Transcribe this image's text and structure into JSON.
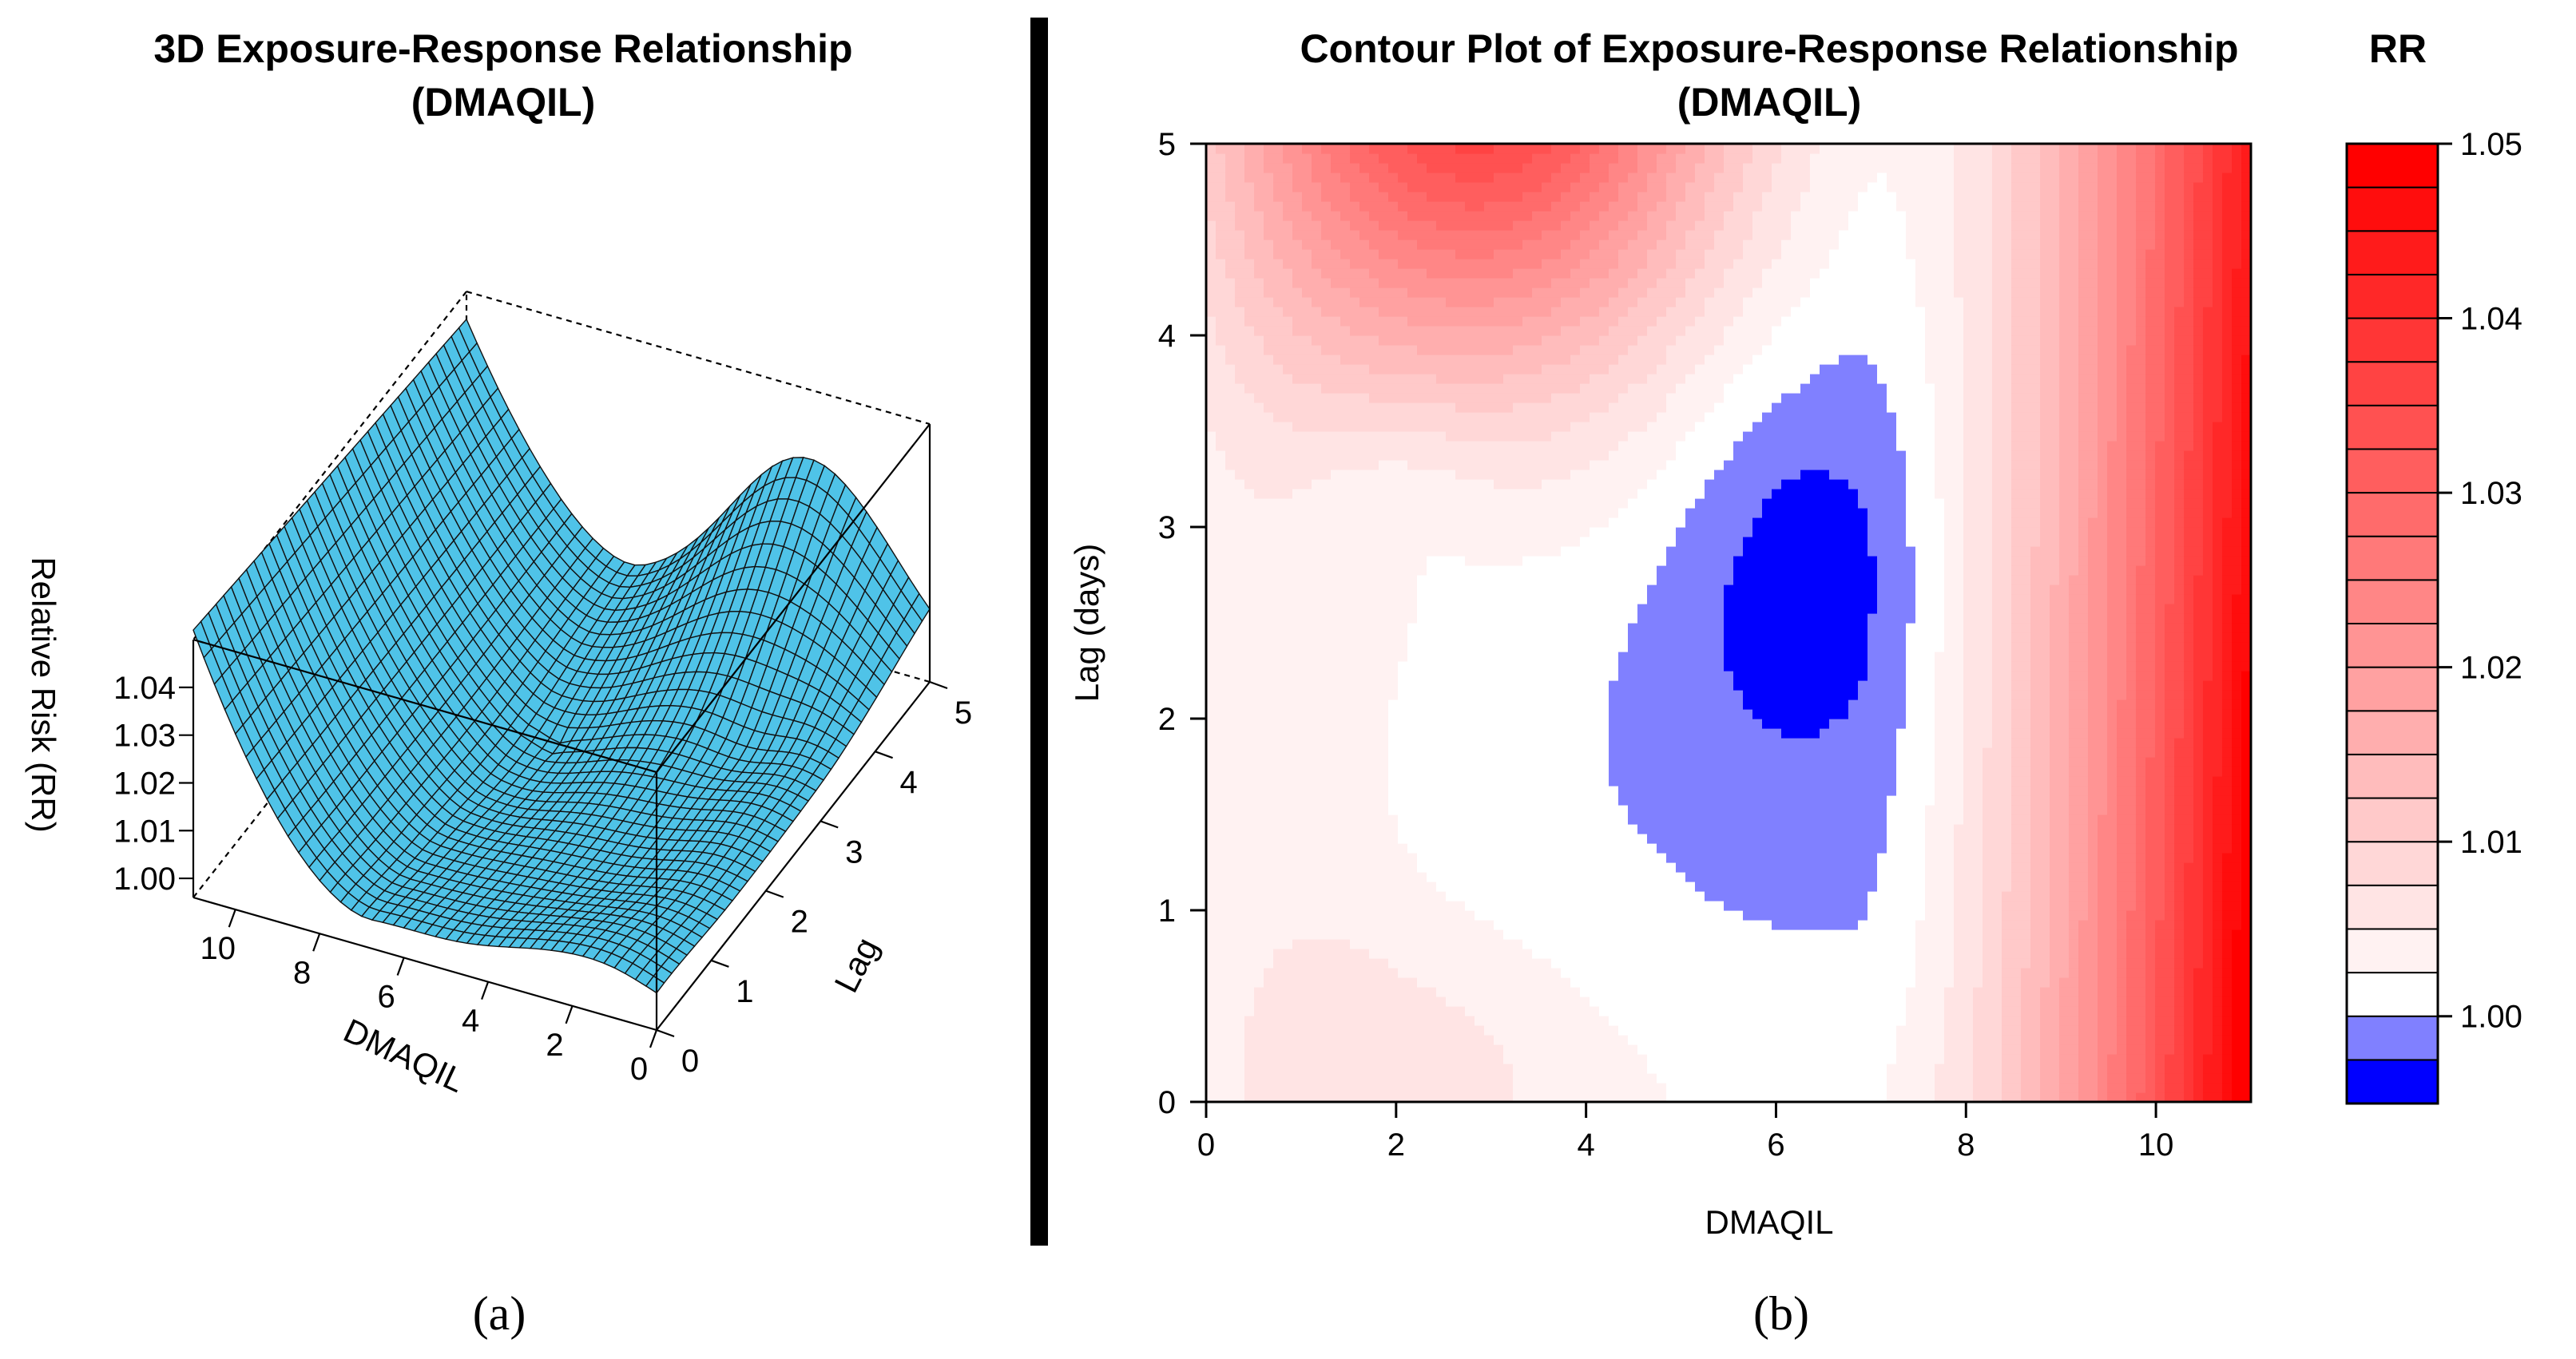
{
  "chart_data": [
    {
      "type": "surface3d",
      "title_line1": "3D Exposure-Response Relationship",
      "title_line2": "(DMAQIL)",
      "xlabel": "DMAQIL",
      "ylabel": "Lag",
      "zlabel": "Relative Risk (RR)",
      "x_ticks": [
        "0",
        "2",
        "4",
        "6",
        "8",
        "10"
      ],
      "y_ticks": [
        "0",
        "1",
        "2",
        "3",
        "4",
        "5"
      ],
      "z_ticks": [
        "1.00",
        "1.01",
        "1.02",
        "1.03",
        "1.04"
      ],
      "xlim": [
        0,
        11
      ],
      "ylim": [
        0,
        5
      ],
      "zlim": [
        0.996,
        1.05
      ],
      "panel_label": "(a)",
      "surface_color": "#4fc3e8"
    },
    {
      "type": "contour",
      "title_line1": "Contour Plot of Exposure-Response Relationship",
      "title_line2": "(DMAQIL)",
      "xlabel": "DMAQIL",
      "ylabel": "Lag (days)",
      "x_ticks": [
        "0",
        "2",
        "4",
        "6",
        "8",
        "10"
      ],
      "y_ticks": [
        "0",
        "1",
        "2",
        "3",
        "4",
        "5"
      ],
      "xlim": [
        0,
        11
      ],
      "ylim": [
        0,
        5
      ],
      "legend_title": "RR",
      "legend_ticks": [
        "1.00",
        "1.01",
        "1.02",
        "1.03",
        "1.04",
        "1.05"
      ],
      "levels_min": 0.995,
      "levels_max": 1.05,
      "level_step": 0.0025,
      "panel_label": "(b)",
      "high_color": "#ff0000",
      "low_color": "#0000ff"
    }
  ]
}
